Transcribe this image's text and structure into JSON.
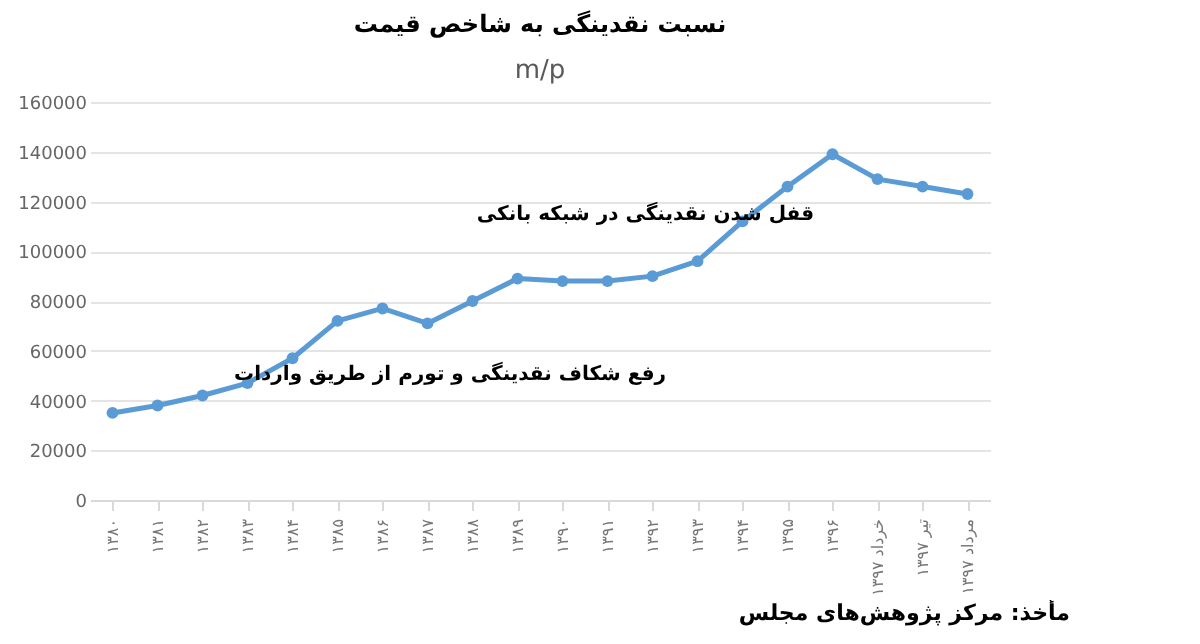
{
  "chart_data": {
    "type": "line",
    "title": "نسبت نقدینگی به شاخص قیمت",
    "subtitle": "m/p",
    "categories": [
      "۱۳۸۰",
      "۱۳۸۱",
      "۱۳۸۲",
      "۱۳۸۳",
      "۱۳۸۴",
      "۱۳۸۵",
      "۱۳۸۶",
      "۱۳۸۷",
      "۱۳۸۸",
      "۱۳۸۹",
      "۱۳۹۰",
      "۱۳۹۱",
      "۱۳۹۲",
      "۱۳۹۳",
      "۱۳۹۴",
      "۱۳۹۵",
      "۱۳۹۶",
      "خرداد ۱۳۹۷",
      "تیر ۱۳۹۷",
      "مرداد ۱۳۹۷"
    ],
    "series": [
      {
        "color": "#5b9bd5",
        "values": [
          35000,
          38000,
          42000,
          47000,
          57000,
          72000,
          77000,
          71000,
          80000,
          89000,
          88000,
          88000,
          90000,
          96000,
          112000,
          126000,
          139000,
          129000,
          126000,
          123000
        ]
      }
    ],
    "ylim": [
      0,
      160000
    ],
    "yticks": [
      0,
      20000,
      40000,
      60000,
      80000,
      100000,
      120000,
      140000,
      160000
    ],
    "grid": "y",
    "marker": "circle",
    "line_style": "solid",
    "annotations": [
      "قفل شدن نقدینگی در شبکه بانکی",
      "رفع شکاف نقدینگی و تورم از طریق واردات",
      "مأخذ: مرکز پژوهش‌های مجلس"
    ]
  }
}
